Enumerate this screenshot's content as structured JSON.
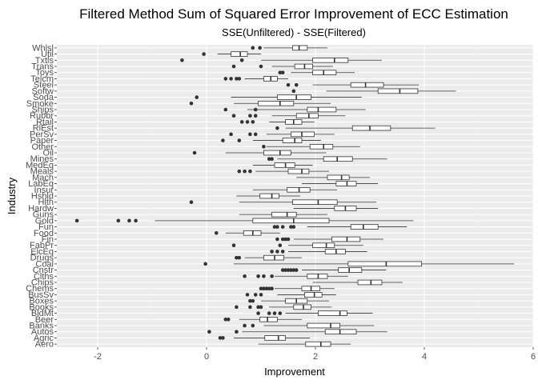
{
  "chart_data": {
    "type": "boxplot",
    "orientation": "horizontal",
    "title": "Filtered Method Sum of Squared Error Improvement of ECC Estimation",
    "subtitle": "SSE(Unfiltered) - SSE(Filtered)",
    "xlabel": "Improvement",
    "ylabel": "Industry",
    "xlim": [
      -2.75,
      6
    ],
    "x_ticks": [
      -2,
      0,
      2,
      4,
      6
    ],
    "grid": true,
    "legend": "none",
    "colors": {
      "panel": "#ebebeb",
      "grid_major": "#ffffff",
      "grid_minor": "#f2f2f2",
      "box_fill": "#ffffff",
      "box_line": "#333333",
      "outlier": "#333333"
    },
    "categories": [
      "Aero",
      "Agric",
      "Autos",
      "Banks",
      "Beer",
      "BldMt",
      "Books",
      "Boxes",
      "BusSv",
      "Chems",
      "Chips",
      "Clths",
      "Cnstr",
      "Coal",
      "Drugs",
      "ElcEq",
      "FabPr",
      "Fin",
      "Food",
      "Fun",
      "Gold",
      "Guns",
      "Hardw",
      "Hlth",
      "Hshld",
      "Insur",
      "LabEq",
      "Mach",
      "Meals",
      "MedEq",
      "Mines",
      "Oil",
      "Other",
      "Paper",
      "PerSv",
      "RlEst",
      "Rtail",
      "Rubbr",
      "Ships",
      "Smoke",
      "Soda",
      "Softw",
      "Steel",
      "Telcm",
      "Toys",
      "Trans",
      "Txtls",
      "Util",
      "Whlsl"
    ],
    "boxes": [
      {
        "name": "Aero",
        "whisker_low": 0.95,
        "q1": 1.82,
        "median": 2.1,
        "q3": 2.28,
        "whisker_high": 2.65,
        "outliers": []
      },
      {
        "name": "Agric",
        "whisker_low": 0.5,
        "q1": 1.07,
        "median": 1.32,
        "q3": 1.45,
        "whisker_high": 1.9,
        "outliers": [
          0.25,
          0.3
        ]
      },
      {
        "name": "Autos",
        "whisker_low": 0.65,
        "q1": 2.18,
        "median": 2.45,
        "q3": 2.75,
        "whisker_high": 3.32,
        "outliers": [
          0.05,
          0.55
        ]
      },
      {
        "name": "Banks",
        "whisker_low": 1.05,
        "q1": 1.85,
        "median": 2.28,
        "q3": 2.45,
        "whisker_high": 3.08,
        "outliers": [
          0.7,
          0.85
        ]
      },
      {
        "name": "Beer",
        "whisker_low": 0.6,
        "q1": 0.98,
        "median": 1.12,
        "q3": 1.3,
        "whisker_high": 1.75,
        "outliers": [
          0.35,
          0.4
        ]
      },
      {
        "name": "BldMt",
        "whisker_low": 1.45,
        "q1": 2.05,
        "median": 2.45,
        "q3": 2.58,
        "whisker_high": 3.05,
        "outliers": [
          0.95,
          1.15,
          1.25,
          1.35
        ]
      },
      {
        "name": "Books",
        "whisker_low": 1.15,
        "q1": 1.6,
        "median": 1.78,
        "q3": 1.92,
        "whisker_high": 2.3,
        "outliers": [
          0.55,
          0.8,
          0.95,
          1.0
        ]
      },
      {
        "name": "Boxes",
        "whisker_low": 1.0,
        "q1": 1.45,
        "median": 1.65,
        "q3": 1.85,
        "whisker_high": 2.25,
        "outliers": [
          0.8,
          0.85
        ]
      },
      {
        "name": "BusSv",
        "whisker_low": 1.3,
        "q1": 1.8,
        "median": 1.98,
        "q3": 2.12,
        "whisker_high": 2.38,
        "outliers": [
          0.75,
          0.9,
          1.0
        ]
      },
      {
        "name": "Chems",
        "whisker_low": 1.25,
        "q1": 1.75,
        "median": 1.92,
        "q3": 2.08,
        "whisker_high": 2.35,
        "outliers": [
          1.0,
          1.05,
          1.1,
          1.15,
          1.2
        ]
      },
      {
        "name": "Chips",
        "whisker_low": 1.95,
        "q1": 2.78,
        "median": 3.02,
        "q3": 3.22,
        "whisker_high": 3.6,
        "outliers": []
      },
      {
        "name": "Clths",
        "whisker_low": 1.25,
        "q1": 1.85,
        "median": 2.05,
        "q3": 2.22,
        "whisker_high": 2.6,
        "outliers": [
          0.7,
          0.95,
          1.05,
          1.2
        ]
      },
      {
        "name": "Cnstr",
        "whisker_low": 1.75,
        "q1": 2.42,
        "median": 2.62,
        "q3": 2.85,
        "whisker_high": 3.3,
        "outliers": [
          1.4,
          1.45,
          1.5,
          1.55,
          1.6,
          1.65
        ]
      },
      {
        "name": "Coal",
        "whisker_low": 0.5,
        "q1": 2.6,
        "median": 3.3,
        "q3": 3.95,
        "whisker_high": 5.65,
        "outliers": [
          -0.02
        ]
      },
      {
        "name": "Drugs",
        "whisker_low": 0.7,
        "q1": 1.05,
        "median": 1.25,
        "q3": 1.42,
        "whisker_high": 1.75,
        "outliers": [
          0.55,
          0.6
        ]
      },
      {
        "name": "ElcEq",
        "whisker_low": 1.5,
        "q1": 2.18,
        "median": 2.38,
        "q3": 2.55,
        "whisker_high": 2.95,
        "outliers": [
          1.2,
          1.3,
          1.4
        ]
      },
      {
        "name": "FabPr",
        "whisker_low": 1.5,
        "q1": 1.95,
        "median": 2.2,
        "q3": 2.35,
        "whisker_high": 2.88,
        "outliers": [
          0.5,
          1.35
        ]
      },
      {
        "name": "Fin",
        "whisker_low": 1.6,
        "q1": 2.3,
        "median": 2.58,
        "q3": 2.82,
        "whisker_high": 3.25,
        "outliers": [
          1.3,
          1.4,
          1.45,
          1.5
        ]
      },
      {
        "name": "Food",
        "whisker_low": 0.35,
        "q1": 0.68,
        "median": 0.85,
        "q3": 1.0,
        "whisker_high": 1.35,
        "outliers": [
          0.18
        ]
      },
      {
        "name": "Fun",
        "whisker_low": 1.85,
        "q1": 2.65,
        "median": 2.88,
        "q3": 3.15,
        "whisker_high": 3.68,
        "outliers": [
          1.25,
          1.3,
          1.4,
          1.55,
          1.6
        ]
      },
      {
        "name": "Gold",
        "whisker_low": -0.95,
        "q1": 0.85,
        "median": 1.6,
        "q3": 2.25,
        "whisker_high": 3.8,
        "outliers": [
          -2.38,
          -1.62,
          -1.42,
          -1.3
        ]
      },
      {
        "name": "Guns",
        "whisker_low": 0.6,
        "q1": 1.2,
        "median": 1.48,
        "q3": 1.65,
        "whisker_high": 2.22,
        "outliers": []
      },
      {
        "name": "Hardw",
        "whisker_low": 1.6,
        "q1": 2.35,
        "median": 2.55,
        "q3": 2.75,
        "whisker_high": 3.15,
        "outliers": []
      },
      {
        "name": "Hlth",
        "whisker_low": 0.6,
        "q1": 1.58,
        "median": 2.05,
        "q3": 2.4,
        "whisker_high": 3.12,
        "outliers": [
          -0.28
        ]
      },
      {
        "name": "Hshld",
        "whisker_low": 0.55,
        "q1": 0.98,
        "median": 1.2,
        "q3": 1.33,
        "whisker_high": 1.72,
        "outliers": []
      },
      {
        "name": "Insur",
        "whisker_low": 0.85,
        "q1": 1.48,
        "median": 1.7,
        "q3": 1.9,
        "whisker_high": 2.4,
        "outliers": []
      },
      {
        "name": "LabEq",
        "whisker_low": 1.75,
        "q1": 2.38,
        "median": 2.58,
        "q3": 2.75,
        "whisker_high": 3.15,
        "outliers": []
      },
      {
        "name": "Mach",
        "whisker_low": 1.65,
        "q1": 2.22,
        "median": 2.48,
        "q3": 2.62,
        "whisker_high": 3.0,
        "outliers": []
      },
      {
        "name": "Meals",
        "whisker_low": 0.9,
        "q1": 1.5,
        "median": 1.75,
        "q3": 1.88,
        "whisker_high": 2.25,
        "outliers": [
          0.6,
          0.7,
          0.8
        ]
      },
      {
        "name": "MedEq",
        "whisker_low": 0.85,
        "q1": 1.25,
        "median": 1.45,
        "q3": 1.62,
        "whisker_high": 1.95,
        "outliers": []
      },
      {
        "name": "Mines",
        "whisker_low": 1.3,
        "q1": 2.15,
        "median": 2.4,
        "q3": 2.68,
        "whisker_high": 3.32,
        "outliers": [
          1.15,
          1.2
        ]
      },
      {
        "name": "Oil",
        "whisker_low": 0.35,
        "q1": 1.05,
        "median": 1.35,
        "q3": 1.55,
        "whisker_high": 2.2,
        "outliers": [
          -0.22
        ]
      },
      {
        "name": "Other",
        "whisker_low": 1.1,
        "q1": 1.9,
        "median": 2.15,
        "q3": 2.32,
        "whisker_high": 2.82,
        "outliers": [
          1.05
        ]
      },
      {
        "name": "Paper",
        "whisker_low": 0.85,
        "q1": 1.4,
        "median": 1.62,
        "q3": 1.75,
        "whisker_high": 2.1,
        "outliers": [
          0.3,
          0.6
        ]
      },
      {
        "name": "PerSv",
        "whisker_low": 1.1,
        "q1": 1.55,
        "median": 1.75,
        "q3": 1.98,
        "whisker_high": 2.35,
        "outliers": [
          0.45,
          0.8,
          0.9
        ]
      },
      {
        "name": "RlEst",
        "whisker_low": 1.45,
        "q1": 2.68,
        "median": 3.0,
        "q3": 3.38,
        "whisker_high": 4.2,
        "outliers": [
          1.3
        ]
      },
      {
        "name": "Rtail",
        "whisker_low": 1.15,
        "q1": 1.45,
        "median": 1.6,
        "q3": 1.75,
        "whisker_high": 1.98,
        "outliers": [
          0.65,
          0.75,
          0.85
        ]
      },
      {
        "name": "Rubbr",
        "whisker_low": 1.2,
        "q1": 1.65,
        "median": 1.88,
        "q3": 2.05,
        "whisker_high": 2.55,
        "outliers": [
          0.5,
          0.8,
          0.9
        ]
      },
      {
        "name": "Ships",
        "whisker_low": 0.75,
        "q1": 1.85,
        "median": 2.05,
        "q3": 2.38,
        "whisker_high": 2.92,
        "outliers": [
          0.35,
          0.9
        ]
      },
      {
        "name": "Smoke",
        "whisker_low": 0.5,
        "q1": 0.95,
        "median": 1.35,
        "q3": 1.6,
        "whisker_high": 2.28,
        "outliers": [
          -0.28
        ]
      },
      {
        "name": "Soda",
        "whisker_low": 0.45,
        "q1": 1.3,
        "median": 1.65,
        "q3": 1.92,
        "whisker_high": 2.85,
        "outliers": [
          -0.18
        ]
      },
      {
        "name": "Softw",
        "whisker_low": 2.2,
        "q1": 3.15,
        "median": 3.55,
        "q3": 3.88,
        "whisker_high": 4.58,
        "outliers": [
          1.6
        ]
      },
      {
        "name": "Steel",
        "whisker_low": 1.95,
        "q1": 2.65,
        "median": 2.92,
        "q3": 3.25,
        "whisker_high": 3.9,
        "outliers": [
          1.5,
          1.65
        ]
      },
      {
        "name": "Telcm",
        "whisker_low": 0.7,
        "q1": 1.05,
        "median": 1.18,
        "q3": 1.3,
        "whisker_high": 1.5,
        "outliers": [
          0.35,
          0.45,
          0.55,
          0.6
        ]
      },
      {
        "name": "Toys",
        "whisker_low": 1.55,
        "q1": 1.95,
        "median": 2.15,
        "q3": 2.38,
        "whisker_high": 2.72,
        "outliers": [
          1.35,
          1.4
        ]
      },
      {
        "name": "Trans",
        "whisker_low": 1.2,
        "q1": 1.62,
        "median": 1.8,
        "q3": 1.95,
        "whisker_high": 2.32,
        "outliers": [
          0.5,
          1.0
        ]
      },
      {
        "name": "Txtls",
        "whisker_low": 1.0,
        "q1": 1.95,
        "median": 2.35,
        "q3": 2.6,
        "whisker_high": 3.22,
        "outliers": [
          -0.45,
          0.65
        ]
      },
      {
        "name": "Util",
        "whisker_low": 0.2,
        "q1": 0.45,
        "median": 0.62,
        "q3": 0.75,
        "whisker_high": 1.0,
        "outliers": [
          -0.05
        ]
      },
      {
        "name": "Whlsl",
        "whisker_low": 1.05,
        "q1": 1.58,
        "median": 1.7,
        "q3": 1.85,
        "whisker_high": 2.22,
        "outliers": [
          0.85,
          0.98
        ]
      }
    ]
  }
}
